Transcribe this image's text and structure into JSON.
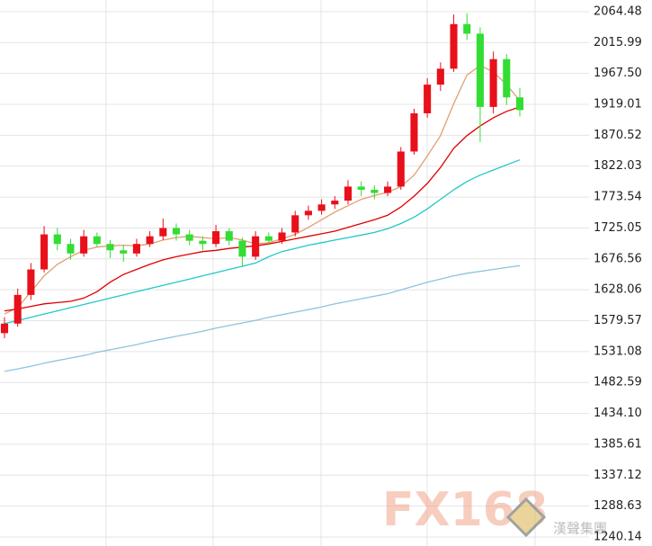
{
  "chart_data": {
    "type": "candlestick",
    "ylim": [
      1226,
      2082.8
    ],
    "yticks": [
      2064.48,
      2015.99,
      {
        "value": 1967.5,
        "label": "1967.50"
      },
      1919.01,
      1870.52,
      1822.03,
      1773.54,
      1725.05,
      1676.56,
      1628.06,
      1579.57,
      1531.08,
      1482.59,
      {
        "value": 1434.1,
        "label": "1434.10"
      },
      1385.61,
      1337.12,
      1288.63,
      1240.14
    ],
    "grid": true,
    "up_color": "#e8101a",
    "down_color": "#33dd33",
    "ohlc": [
      [
        1560,
        1585,
        1552,
        1575
      ],
      [
        1575,
        1630,
        1570,
        1620
      ],
      [
        1620,
        1670,
        1612,
        1660
      ],
      [
        1660,
        1728,
        1655,
        1715
      ],
      [
        1715,
        1725,
        1690,
        1700
      ],
      [
        1700,
        1708,
        1675,
        1685
      ],
      [
        1685,
        1722,
        1680,
        1712
      ],
      [
        1712,
        1718,
        1695,
        1700
      ],
      [
        1700,
        1706,
        1678,
        1690
      ],
      [
        1690,
        1698,
        1672,
        1685
      ],
      [
        1685,
        1708,
        1680,
        1700
      ],
      [
        1700,
        1720,
        1695,
        1712
      ],
      [
        1712,
        1740,
        1706,
        1725
      ],
      [
        1725,
        1732,
        1705,
        1715
      ],
      [
        1715,
        1722,
        1698,
        1705
      ],
      [
        1705,
        1712,
        1690,
        1700
      ],
      [
        1700,
        1730,
        1695,
        1720
      ],
      [
        1720,
        1725,
        1698,
        1705
      ],
      [
        1705,
        1710,
        1665,
        1680
      ],
      [
        1680,
        1720,
        1675,
        1712
      ],
      [
        1712,
        1718,
        1698,
        1705
      ],
      [
        1705,
        1725,
        1700,
        1718
      ],
      [
        1718,
        1752,
        1712,
        1745
      ],
      [
        1745,
        1760,
        1738,
        1752
      ],
      [
        1752,
        1770,
        1746,
        1762
      ],
      [
        1762,
        1775,
        1755,
        1768
      ],
      [
        1768,
        1800,
        1762,
        1790
      ],
      [
        1790,
        1798,
        1775,
        1785
      ],
      [
        1785,
        1792,
        1770,
        1780
      ],
      [
        1780,
        1798,
        1775,
        1790
      ],
      [
        1790,
        1852,
        1785,
        1845
      ],
      [
        1845,
        1912,
        1840,
        1905
      ],
      [
        1905,
        1960,
        1898,
        1950
      ],
      [
        1950,
        1985,
        1940,
        1975
      ],
      [
        1975,
        2060,
        1970,
        2045
      ],
      [
        2045,
        2062,
        2020,
        2030
      ],
      [
        2030,
        2040,
        1860,
        1915
      ],
      [
        1915,
        2002,
        1905,
        1990
      ],
      [
        1990,
        1998,
        1918,
        1930
      ],
      [
        1930,
        1945,
        1900,
        1910
      ]
    ],
    "lines": [
      {
        "color": "#e0a070",
        "values": [
          1590,
          1600,
          1625,
          1650,
          1668,
          1680,
          1690,
          1695,
          1697,
          1698,
          1697,
          1700,
          1706,
          1710,
          1712,
          1710,
          1708,
          1710,
          1706,
          1700,
          1702,
          1708,
          1715,
          1726,
          1738,
          1750,
          1760,
          1770,
          1776,
          1781,
          1790,
          1808,
          1838,
          1870,
          1920,
          1965,
          1980,
          1970,
          1950,
          1925
        ]
      },
      {
        "color": "#e00000",
        "values": [
          1595,
          1598,
          1602,
          1606,
          1608,
          1610,
          1615,
          1625,
          1640,
          1652,
          1660,
          1668,
          1675,
          1680,
          1684,
          1688,
          1690,
          1693,
          1695,
          1697,
          1700,
          1704,
          1708,
          1712,
          1716,
          1720,
          1726,
          1732,
          1738,
          1745,
          1758,
          1775,
          1795,
          1820,
          1850,
          1870,
          1885,
          1898,
          1908,
          1915
        ]
      },
      {
        "color": "#22c8c8",
        "values": [
          1575,
          1580,
          1585,
          1590,
          1595,
          1600,
          1605,
          1610,
          1615,
          1620,
          1625,
          1630,
          1635,
          1640,
          1645,
          1650,
          1655,
          1660,
          1665,
          1670,
          1680,
          1688,
          1693,
          1698,
          1702,
          1706,
          1710,
          1714,
          1718,
          1724,
          1732,
          1742,
          1755,
          1770,
          1785,
          1798,
          1808,
          1816,
          1824,
          1832
        ]
      },
      {
        "color": "#8ec4de",
        "values": [
          1500,
          1504,
          1508,
          1513,
          1517,
          1521,
          1525,
          1530,
          1534,
          1538,
          1542,
          1547,
          1551,
          1555,
          1559,
          1563,
          1568,
          1572,
          1576,
          1580,
          1585,
          1589,
          1593,
          1597,
          1601,
          1606,
          1610,
          1614,
          1618,
          1622,
          1628,
          1634,
          1640,
          1645,
          1650,
          1654,
          1657,
          1660,
          1663,
          1666
        ]
      }
    ]
  },
  "watermark": {
    "logo": "FX168",
    "subtitle": "漢聲集團"
  }
}
